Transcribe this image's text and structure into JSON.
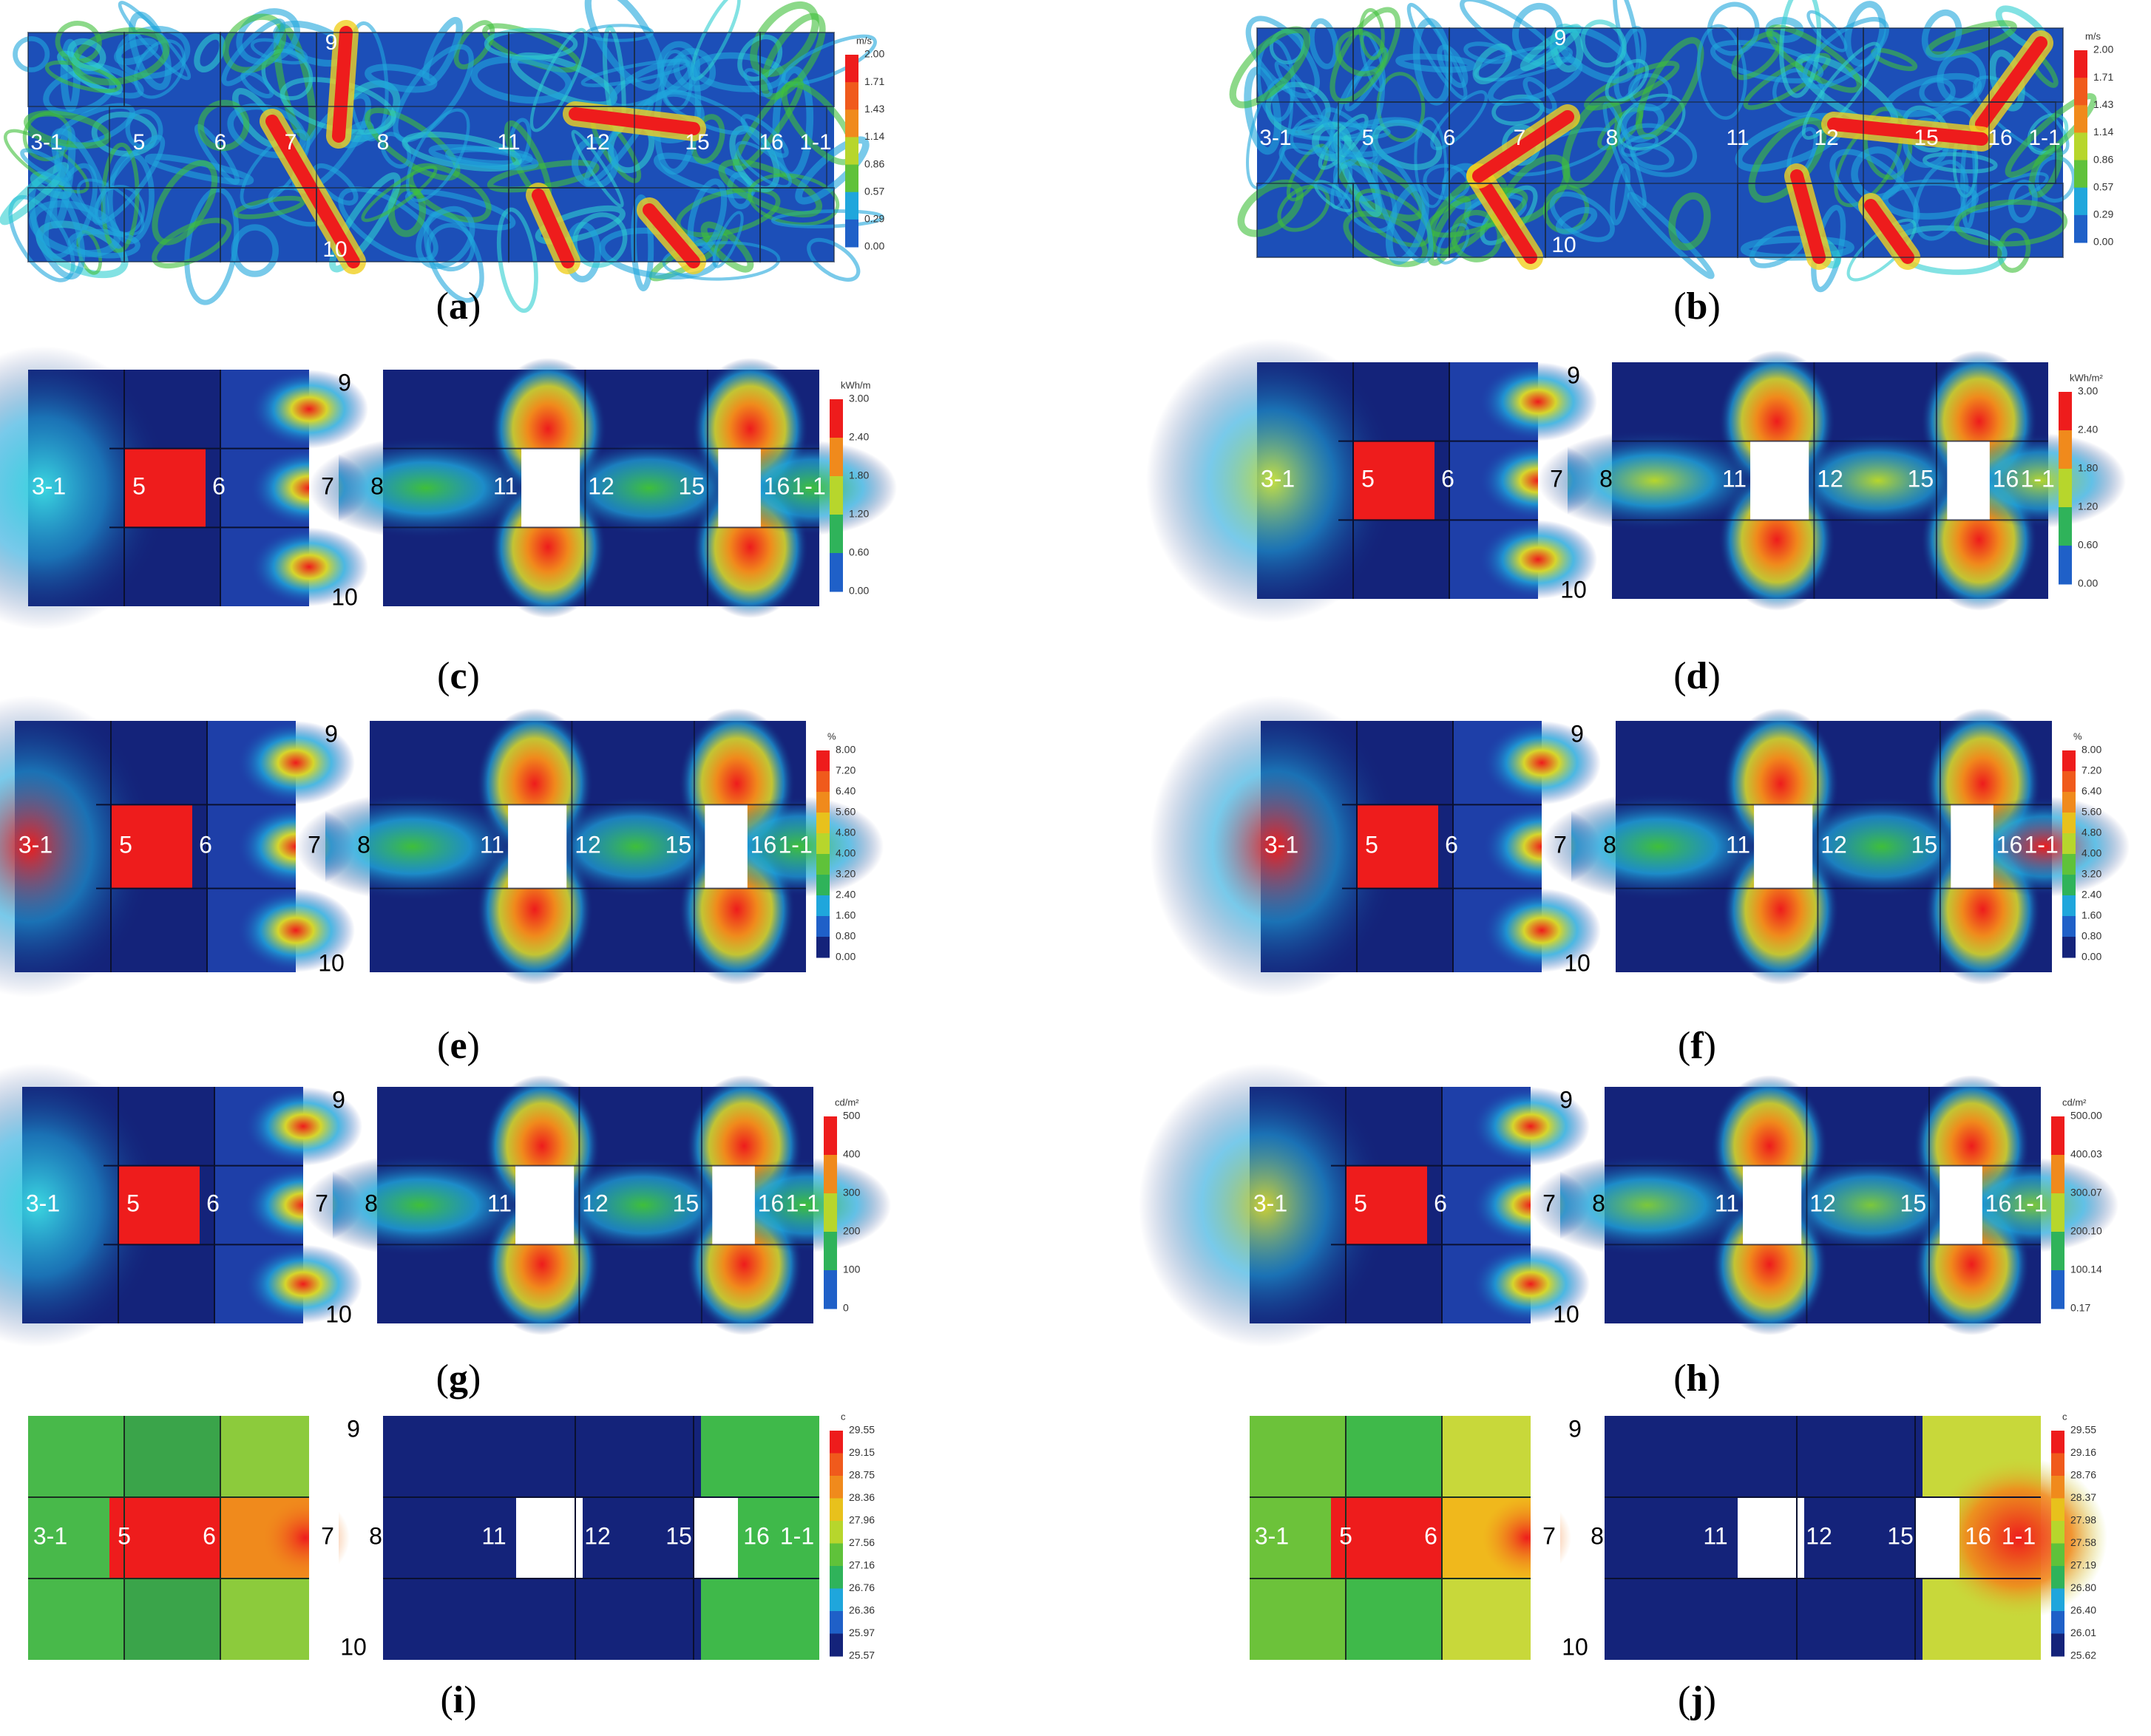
{
  "panels": [
    {
      "id": "a",
      "type": "wind",
      "legend": {
        "unit": "m/s",
        "ticks": [
          "2.00",
          "1.71",
          "1.43",
          "1.14",
          "0.86",
          "0.57",
          "0.29",
          "0.00"
        ]
      },
      "labels": [
        "3-1",
        "5",
        "6",
        "7",
        "8",
        "9",
        "10",
        "11",
        "12",
        "15",
        "16",
        "1-1"
      ]
    },
    {
      "id": "b",
      "type": "wind",
      "legend": {
        "unit": "m/s",
        "ticks": [
          "2.00",
          "1.71",
          "1.43",
          "1.14",
          "0.86",
          "0.57",
          "0.29",
          "0.00"
        ]
      },
      "labels": [
        "3-1",
        "5",
        "6",
        "7",
        "8",
        "9",
        "10",
        "11",
        "12",
        "15",
        "16",
        "1-1"
      ]
    },
    {
      "id": "c",
      "type": "plan",
      "legend": {
        "unit": "kWh/m",
        "ticks": [
          "3.00",
          "2.40",
          "1.80",
          "1.20",
          "0.60",
          "0.00"
        ]
      },
      "labels": [
        "3-1",
        "5",
        "6",
        "7",
        "8",
        "9",
        "10",
        "11",
        "12",
        "15",
        "16",
        "1-1"
      ]
    },
    {
      "id": "d",
      "type": "plan",
      "legend": {
        "unit": "kWh/m²",
        "ticks": [
          "3.00",
          "2.40",
          "1.80",
          "1.20",
          "0.60",
          "0.00"
        ]
      },
      "labels": [
        "3-1",
        "5",
        "6",
        "7",
        "8",
        "9",
        "10",
        "11",
        "12",
        "15",
        "16",
        "1-1"
      ]
    },
    {
      "id": "e",
      "type": "plan",
      "legend": {
        "unit": "%",
        "ticks": [
          "8.00",
          "7.20",
          "6.40",
          "5.60",
          "4.80",
          "4.00",
          "3.20",
          "2.40",
          "1.60",
          "0.80",
          "0.00"
        ]
      },
      "labels": [
        "3-1",
        "5",
        "6",
        "7",
        "8",
        "9",
        "10",
        "11",
        "12",
        "15",
        "16",
        "1-1"
      ]
    },
    {
      "id": "f",
      "type": "plan",
      "legend": {
        "unit": "%",
        "ticks": [
          "8.00",
          "7.20",
          "6.40",
          "5.60",
          "4.80",
          "4.00",
          "3.20",
          "2.40",
          "1.60",
          "0.80",
          "0.00"
        ]
      },
      "labels": [
        "3-1",
        "5",
        "6",
        "7",
        "8",
        "9",
        "10",
        "11",
        "12",
        "15",
        "16",
        "1-1"
      ]
    },
    {
      "id": "g",
      "type": "plan",
      "legend": {
        "unit": "cd/m²",
        "ticks": [
          "500",
          "400",
          "300",
          "200",
          "100",
          "0"
        ]
      },
      "labels": [
        "3-1",
        "5",
        "6",
        "7",
        "8",
        "9",
        "10",
        "11",
        "12",
        "15",
        "16",
        "1-1"
      ]
    },
    {
      "id": "h",
      "type": "plan",
      "legend": {
        "unit": "cd/m²",
        "ticks": [
          "500.00",
          "400.03",
          "300.07",
          "200.10",
          "100.14",
          "0.17"
        ]
      },
      "labels": [
        "3-1",
        "5",
        "6",
        "7",
        "8",
        "9",
        "10",
        "11",
        "12",
        "15",
        "16",
        "1-1"
      ]
    },
    {
      "id": "i",
      "type": "temp",
      "legend": {
        "unit": "c",
        "ticks": [
          "29.55",
          "29.15",
          "28.75",
          "28.36",
          "27.96",
          "27.56",
          "27.16",
          "26.76",
          "26.36",
          "25.97",
          "25.57"
        ]
      },
      "labels": [
        "3-1",
        "5",
        "6",
        "7",
        "8",
        "9",
        "10",
        "11",
        "12",
        "15",
        "16",
        "1-1"
      ]
    },
    {
      "id": "j",
      "type": "temp",
      "legend": {
        "unit": "c",
        "ticks": [
          "29.55",
          "29.16",
          "28.76",
          "28.37",
          "27.98",
          "27.58",
          "27.19",
          "26.80",
          "26.40",
          "26.01",
          "25.62"
        ]
      },
      "labels": [
        "3-1",
        "5",
        "6",
        "7",
        "8",
        "9",
        "10",
        "11",
        "12",
        "15",
        "16",
        "1-1"
      ]
    }
  ],
  "captions": {
    "a": "a",
    "b": "b",
    "c": "c",
    "d": "d",
    "e": "e",
    "f": "f",
    "g": "g",
    "h": "h",
    "i": "i",
    "j": "j"
  },
  "colors": {
    "dark": "#14237a",
    "blue": "#2450c8",
    "cyan": "#1fa6dc",
    "green": "#3fbf3a",
    "yellow": "#d6d62c",
    "orange": "#f08a1c",
    "red": "#ee1c1c"
  }
}
